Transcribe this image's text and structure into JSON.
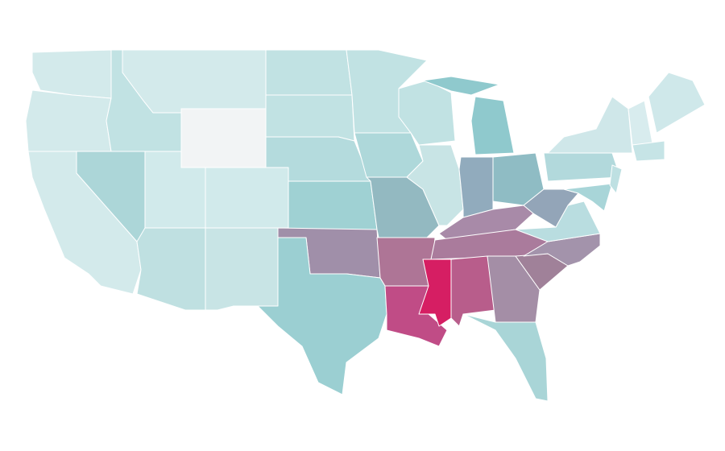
{
  "map": {
    "regions": [
      {
        "color": "#d3eaeb"
      },
      {
        "color": "#d3eaeb"
      },
      {
        "color": "#d3eaeb"
      },
      {
        "color": "#acd6d8"
      },
      {
        "color": "#c1e2e3"
      },
      {
        "color": "#d3eaeb"
      },
      {
        "color": "#f2f4f5"
      },
      {
        "color": "#d1eaeb"
      },
      {
        "color": "#d1eaeb"
      },
      {
        "color": "#bfe0e1"
      },
      {
        "color": "#c8e4e5"
      },
      {
        "color": "#c1e2e3"
      },
      {
        "color": "#c1e2e3"
      },
      {
        "color": "#b4dbdd"
      },
      {
        "color": "#9fd1d3"
      },
      {
        "color": "#a08fa9"
      },
      {
        "color": "#9bcfd2"
      },
      {
        "color": "#c1e2e3"
      },
      {
        "color": "#aed8da"
      },
      {
        "color": "#93b9c1"
      },
      {
        "color": "#ae7596"
      },
      {
        "color": "#c04c86"
      },
      {
        "color": "#c1e2e3"
      },
      {
        "color": "#c8e4e5"
      },
      {
        "color": "#8fc9cd"
      },
      {
        "color": "#8fc9cd"
      },
      {
        "color": "#91abbd"
      },
      {
        "color": "#8fbcc4"
      },
      {
        "color": "#a88aa8"
      },
      {
        "color": "#aa7b9c"
      },
      {
        "color": "#d61e63"
      },
      {
        "color": "#b85d8b"
      },
      {
        "color": "#a48ea6"
      },
      {
        "color": "#a9d5d7"
      },
      {
        "color": "#a08199"
      },
      {
        "color": "#a393ab"
      },
      {
        "color": "#b9dde0"
      },
      {
        "color": "#93a5b8"
      },
      {
        "color": "#b2d9dc"
      },
      {
        "color": "#cfe7e9"
      },
      {
        "color": "#a8d5d8"
      },
      {
        "color": "#bee0e2"
      },
      {
        "color": "#d8ecee"
      },
      {
        "color": "#cfe8ea"
      },
      {
        "color": "#c6e4e6"
      }
    ]
  }
}
